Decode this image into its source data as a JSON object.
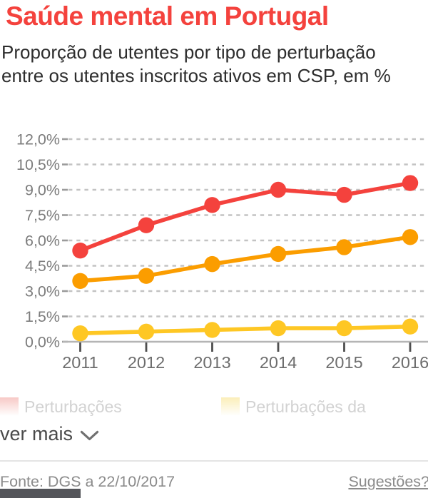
{
  "header": {
    "title": "Saúde mental em Portugal",
    "subtitle_line1": "Proporção de utentes por tipo de perturbação",
    "subtitle_line2": "entre os utentes inscritos ativos em CSP, em %"
  },
  "chart_data": {
    "type": "line",
    "title": "Saúde mental em Portugal",
    "subtitle": "Proporção de utentes por tipo de perturbação entre os utentes inscritos ativos em CSP, em %",
    "x_labels": [
      "2011",
      "2012",
      "2013",
      "2014",
      "2015",
      "2016"
    ],
    "series": [
      {
        "id": "red",
        "color": "#f4423d",
        "values": [
          5.4,
          6.9,
          8.1,
          9.0,
          8.7,
          9.4
        ]
      },
      {
        "id": "orange",
        "color": "#fb9d00",
        "values": [
          3.6,
          3.9,
          4.6,
          5.2,
          5.6,
          6.2
        ]
      },
      {
        "id": "yellow",
        "color": "#fec724",
        "values": [
          0.5,
          0.6,
          0.7,
          0.8,
          0.8,
          0.9
        ]
      }
    ],
    "unit": "%",
    "ylim": [
      0,
      12
    ],
    "y_ticks": [
      {
        "value": 0,
        "label": "0,0%"
      },
      {
        "value": 1.5,
        "label": "1,5%"
      },
      {
        "value": 3,
        "label": "3,0%"
      },
      {
        "value": 4.5,
        "label": "4,5%"
      },
      {
        "value": 6,
        "label": "6,0%"
      },
      {
        "value": 7.5,
        "label": "7,5%"
      },
      {
        "value": 9,
        "label": "9,0%"
      },
      {
        "value": 10.5,
        "label": "10,5%"
      },
      {
        "value": 12,
        "label": "12,0%"
      }
    ],
    "grid": "dashed-horizontal",
    "legend_position": "bottom"
  },
  "legend": {
    "items": [
      {
        "label": "Perturbações",
        "swatch_color": "#f7c9c6"
      },
      {
        "label": "Perturbações da",
        "swatch_color": "#fbeeb9"
      }
    ]
  },
  "controls": {
    "ver_mais": "ver mais"
  },
  "footer": {
    "source": "Fonte: DGS a 22/10/2017",
    "suggestions": "Sugestões?"
  }
}
